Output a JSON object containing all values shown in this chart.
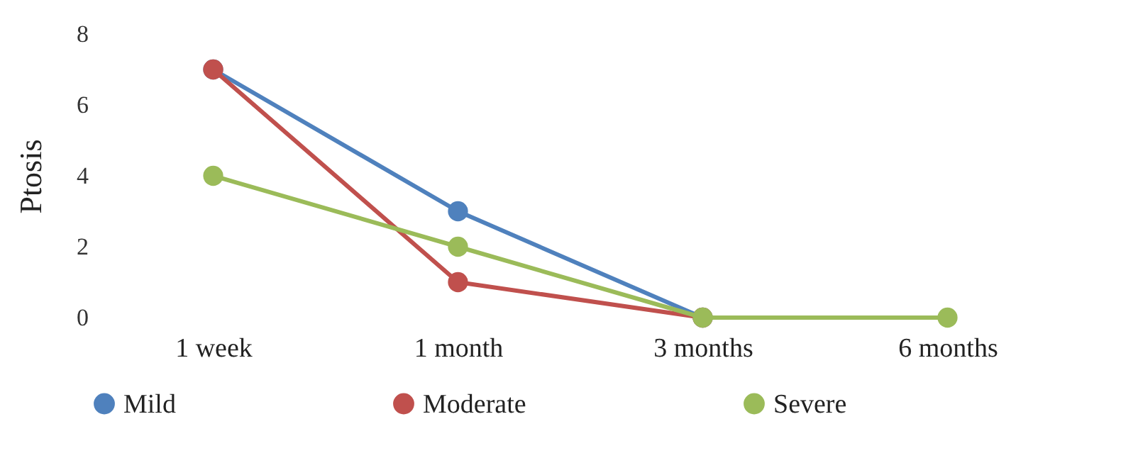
{
  "chart_data": {
    "type": "line",
    "ylabel": "Ptosis",
    "categories": [
      "1 week",
      "1 month",
      "3 months",
      "6 months"
    ],
    "series": [
      {
        "name": "Mild",
        "color": "#4f81bd",
        "values": [
          7,
          3,
          0,
          null
        ]
      },
      {
        "name": "Moderate",
        "color": "#c0504d",
        "values": [
          7,
          1,
          0,
          null
        ]
      },
      {
        "name": "Severe",
        "color": "#9bbb59",
        "values": [
          4,
          2,
          0,
          0
        ]
      }
    ],
    "ylim": [
      0,
      8
    ],
    "yticks": [
      0,
      2,
      4,
      6,
      8
    ],
    "legend": "bottom",
    "marker": "circle",
    "line_style": "solid"
  }
}
